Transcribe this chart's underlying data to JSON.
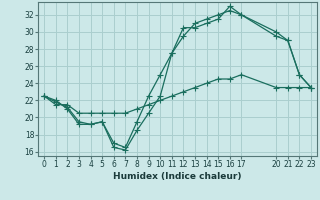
{
  "xlabel": "Humidex (Indice chaleur)",
  "bg_color": "#cce8e8",
  "grid_color": "#aacece",
  "line_color": "#1a6e5e",
  "xlim": [
    -0.5,
    23.5
  ],
  "ylim": [
    15.5,
    33.5
  ],
  "xtick_positions": [
    0,
    1,
    2,
    3,
    4,
    5,
    6,
    7,
    8,
    9,
    10,
    11,
    12,
    13,
    14,
    15,
    16,
    17,
    20,
    21,
    22,
    23
  ],
  "xtick_labels": [
    "0",
    "1",
    "2",
    "3",
    "4",
    "5",
    "6",
    "7",
    "8",
    "9",
    "10",
    "11",
    "12",
    "13",
    "14",
    "15",
    "16",
    "17",
    "20",
    "21",
    "22",
    "23"
  ],
  "yticks": [
    16,
    18,
    20,
    22,
    24,
    26,
    28,
    30,
    32
  ],
  "line1_x": [
    0,
    1,
    2,
    3,
    4,
    5,
    6,
    7,
    8,
    9,
    10,
    11,
    12,
    13,
    14,
    15,
    16,
    17,
    20,
    21,
    22,
    23
  ],
  "line1_y": [
    22.5,
    22.0,
    21.0,
    19.2,
    19.2,
    19.5,
    16.5,
    16.2,
    18.5,
    20.5,
    22.5,
    27.5,
    30.5,
    30.5,
    31.0,
    31.5,
    33.0,
    32.0,
    29.5,
    29.0,
    25.0,
    23.5
  ],
  "line2_x": [
    0,
    1,
    2,
    3,
    4,
    5,
    6,
    7,
    8,
    9,
    10,
    11,
    12,
    13,
    14,
    15,
    16,
    17,
    20,
    21,
    22,
    23
  ],
  "line2_y": [
    22.5,
    21.8,
    21.2,
    19.5,
    19.2,
    19.5,
    17.0,
    16.5,
    19.5,
    22.5,
    25.0,
    27.5,
    29.5,
    31.0,
    31.5,
    32.0,
    32.5,
    32.0,
    30.0,
    29.0,
    25.0,
    23.5
  ],
  "line3_x": [
    0,
    1,
    2,
    3,
    4,
    5,
    6,
    7,
    8,
    9,
    10,
    11,
    12,
    13,
    14,
    15,
    16,
    17,
    20,
    21,
    22,
    23
  ],
  "line3_y": [
    22.5,
    21.5,
    21.5,
    20.5,
    20.5,
    20.5,
    20.5,
    20.5,
    21.0,
    21.5,
    22.0,
    22.5,
    23.0,
    23.5,
    24.0,
    24.5,
    24.5,
    25.0,
    23.5,
    23.5,
    23.5,
    23.5
  ]
}
